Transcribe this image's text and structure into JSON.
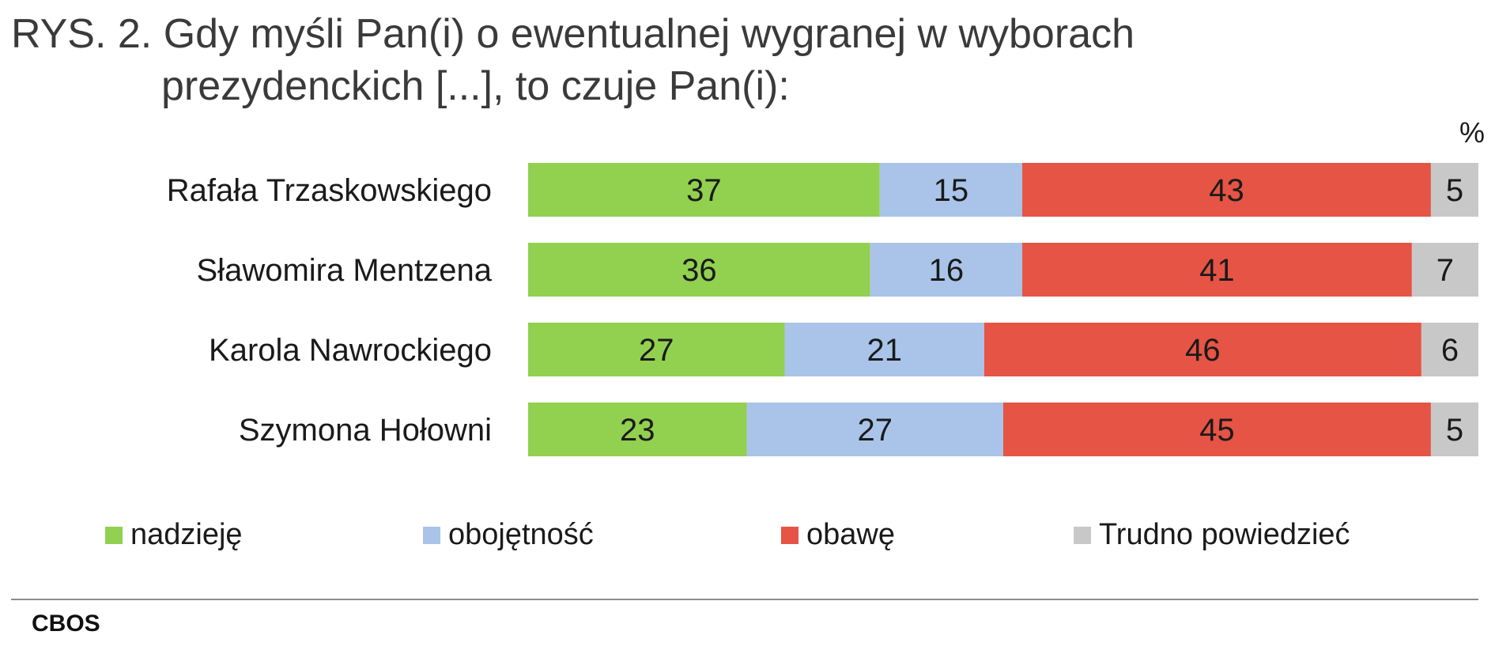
{
  "header": {
    "title_line1": "RYS. 2. Gdy myśli Pan(i) o ewentualnej wygranej w wyborach",
    "title_line2": "prezydenckich [...], to czuje Pan(i):"
  },
  "chart_data": {
    "type": "bar",
    "orientation": "horizontal",
    "stacked": true,
    "unit_label": "%",
    "categories": [
      "Rafała Trzaskowskiego",
      "Sławomira Mentzena",
      "Karola Nawrockiego",
      "Szymona Hołowni"
    ],
    "series": [
      {
        "name": "nadzieję",
        "color": "#92d050",
        "values": [
          37,
          36,
          27,
          23
        ]
      },
      {
        "name": "obojętność",
        "color": "#a9c4e8",
        "values": [
          15,
          16,
          21,
          27
        ]
      },
      {
        "name": "obawę",
        "color": "#e55444",
        "values": [
          43,
          41,
          46,
          45
        ]
      },
      {
        "name": "Trudno powiedzieć",
        "color": "#c8c8c8",
        "values": [
          5,
          7,
          6,
          5
        ]
      }
    ],
    "legend_position": "bottom",
    "grid": false
  },
  "footer": {
    "source": "CBOS"
  }
}
